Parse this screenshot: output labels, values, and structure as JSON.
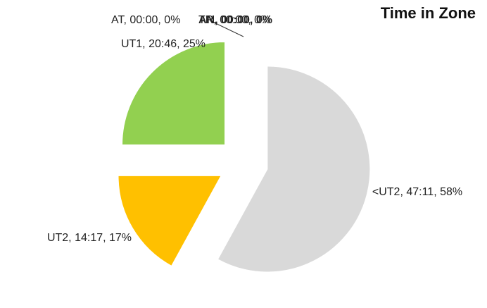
{
  "chart_data": {
    "type": "pie",
    "title": "Time in Zone",
    "values": [
      58,
      17,
      25,
      0,
      0,
      0
    ],
    "value_labels": [
      "<UT2, 47:11, 58%",
      "UT2, 14:17, 17%",
      "UT1, 20:46, 25%",
      "AT, 00:00, 0%",
      "TR, 00:00, 0%",
      "AN, 00:00, 0%"
    ],
    "colors": [
      "#d9d9d9",
      "#ffc000",
      "#92d050",
      "#4472c4",
      "#ed7d31",
      "#a5a5a5"
    ],
    "exploded": true
  }
}
